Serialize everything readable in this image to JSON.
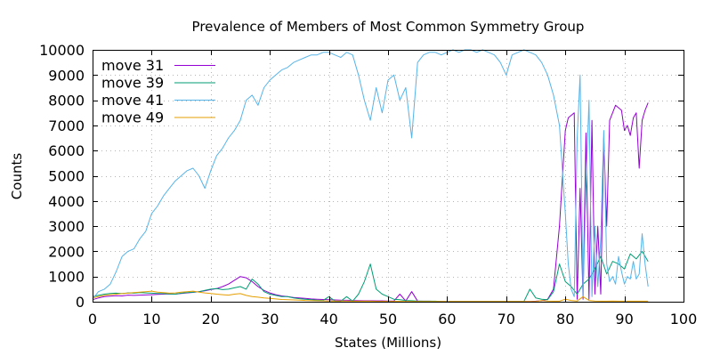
{
  "chart_data": {
    "type": "line",
    "title": "Prevalence of Members of Most Common Symmetry Group",
    "xlabel": "States (Millions)",
    "ylabel": "Counts",
    "xlim": [
      0,
      100
    ],
    "ylim": [
      0,
      10000
    ],
    "xticks": [
      0,
      10,
      20,
      30,
      40,
      50,
      60,
      70,
      80,
      90,
      100
    ],
    "yticks": [
      0,
      1000,
      2000,
      3000,
      4000,
      5000,
      6000,
      7000,
      8000,
      9000,
      10000
    ],
    "grid": true,
    "legend_position": "top-left",
    "series": [
      {
        "name": "move 31",
        "color": "#9400d3",
        "x": [
          0,
          1,
          2,
          3,
          4,
          5,
          6,
          7,
          8,
          9,
          10,
          11,
          12,
          13,
          14,
          15,
          16,
          17,
          18,
          19,
          20,
          21,
          22,
          23,
          24,
          25,
          26,
          27,
          28,
          29,
          30,
          31,
          32,
          33,
          34,
          35,
          36,
          37,
          38,
          39,
          40,
          41,
          42,
          43,
          44,
          45,
          46,
          47,
          48,
          49,
          50,
          51,
          52,
          53,
          54,
          55,
          56,
          57,
          58,
          59,
          60,
          61,
          62,
          63,
          64,
          65,
          66,
          67,
          68,
          69,
          70,
          71,
          72,
          73,
          74,
          75,
          76,
          77,
          78,
          79,
          80,
          80.5,
          81,
          81.5,
          82,
          82.5,
          83,
          83.5,
          84,
          84.5,
          85,
          85.5,
          86,
          86.5,
          87,
          87.5,
          88,
          88.5,
          89,
          89.5,
          90,
          90.5,
          91,
          91.5,
          92,
          92.5,
          93,
          93.5,
          94
        ],
        "y": [
          80,
          150,
          200,
          220,
          240,
          230,
          260,
          250,
          260,
          270,
          280,
          290,
          300,
          310,
          300,
          330,
          350,
          370,
          400,
          430,
          480,
          520,
          600,
          700,
          850,
          1000,
          950,
          800,
          600,
          450,
          350,
          280,
          230,
          200,
          170,
          150,
          130,
          110,
          100,
          90,
          80,
          70,
          60,
          55,
          50,
          45,
          40,
          40,
          35,
          35,
          30,
          30,
          300,
          30,
          400,
          25,
          20,
          20,
          15,
          15,
          10,
          10,
          10,
          10,
          10,
          10,
          10,
          10,
          10,
          10,
          10,
          10,
          10,
          10,
          10,
          20,
          40,
          100,
          500,
          3000,
          6800,
          7300,
          7400,
          7500,
          100,
          4500,
          100,
          6700,
          100,
          7200,
          300,
          3000,
          300,
          6500,
          3000,
          7200,
          7500,
          7800,
          7700,
          7600,
          6800,
          7000,
          6600,
          7300,
          7500,
          5300,
          7200,
          7600,
          7900
        ]
      },
      {
        "name": "move 39",
        "color": "#009e73",
        "x": [
          0,
          1,
          2,
          3,
          4,
          5,
          6,
          7,
          8,
          9,
          10,
          11,
          12,
          13,
          14,
          15,
          16,
          17,
          18,
          19,
          20,
          21,
          22,
          23,
          24,
          25,
          26,
          27,
          28,
          29,
          30,
          31,
          32,
          33,
          34,
          35,
          36,
          37,
          38,
          39,
          40,
          41,
          42,
          43,
          44,
          45,
          46,
          47,
          48,
          49,
          50,
          51,
          52,
          53,
          54,
          55,
          56,
          57,
          58,
          59,
          60,
          61,
          62,
          63,
          64,
          65,
          66,
          67,
          68,
          69,
          70,
          71,
          72,
          73,
          74,
          75,
          76,
          77,
          78,
          79,
          80,
          81,
          82,
          83,
          84,
          85,
          86,
          87,
          88,
          89,
          90,
          91,
          92,
          93,
          94
        ],
        "y": [
          200,
          250,
          300,
          330,
          340,
          320,
          350,
          340,
          360,
          350,
          340,
          330,
          320,
          310,
          300,
          340,
          360,
          380,
          400,
          450,
          500,
          520,
          480,
          500,
          550,
          600,
          500,
          900,
          700,
          400,
          300,
          250,
          200,
          200,
          150,
          120,
          100,
          80,
          60,
          50,
          200,
          30,
          20,
          200,
          20,
          300,
          800,
          1500,
          500,
          300,
          200,
          100,
          80,
          50,
          40,
          30,
          20,
          20,
          20,
          10,
          10,
          10,
          10,
          10,
          10,
          10,
          10,
          10,
          10,
          10,
          10,
          10,
          10,
          10,
          500,
          150,
          100,
          80,
          400,
          1500,
          800,
          600,
          300,
          700,
          900,
          1300,
          1800,
          1100,
          1600,
          1500,
          1300,
          1900,
          1700,
          2000,
          1600
        ]
      },
      {
        "name": "move 41",
        "color": "#56b4e9",
        "x": [
          0,
          1,
          2,
          3,
          4,
          5,
          6,
          7,
          8,
          9,
          10,
          11,
          12,
          13,
          14,
          15,
          16,
          17,
          18,
          19,
          20,
          21,
          22,
          23,
          24,
          25,
          26,
          27,
          28,
          29,
          30,
          31,
          32,
          33,
          34,
          35,
          36,
          37,
          38,
          39,
          40,
          41,
          42,
          43,
          44,
          45,
          46,
          47,
          48,
          49,
          50,
          51,
          52,
          53,
          54,
          55,
          56,
          57,
          58,
          59,
          60,
          61,
          62,
          63,
          64,
          65,
          66,
          67,
          68,
          69,
          70,
          71,
          72,
          73,
          74,
          75,
          76,
          77,
          78,
          79,
          80,
          80.5,
          81,
          81.5,
          82,
          82.5,
          83,
          83.5,
          84,
          84.5,
          85,
          85.5,
          86,
          86.5,
          87,
          87.5,
          88,
          88.5,
          89,
          89.5,
          90,
          90.5,
          91,
          91.5,
          92,
          92.5,
          93,
          93.5,
          94
        ],
        "y": [
          100,
          400,
          500,
          700,
          1200,
          1800,
          2000,
          2100,
          2500,
          2800,
          3500,
          3800,
          4200,
          4500,
          4800,
          5000,
          5200,
          5300,
          5000,
          4500,
          5200,
          5800,
          6100,
          6500,
          6800,
          7200,
          8000,
          8200,
          7800,
          8500,
          8800,
          9000,
          9200,
          9300,
          9500,
          9600,
          9700,
          9800,
          9800,
          9900,
          9900,
          9800,
          9700,
          9900,
          9800,
          9000,
          8000,
          7200,
          8500,
          7500,
          8800,
          9000,
          8000,
          8500,
          6500,
          9500,
          9800,
          9900,
          9900,
          9800,
          9900,
          10000,
          9900,
          10000,
          10000,
          9900,
          10000,
          9900,
          9800,
          9500,
          9000,
          9800,
          9900,
          10000,
          9900,
          9800,
          9500,
          9000,
          8200,
          7000,
          3500,
          1500,
          500,
          200,
          6500,
          9000,
          200,
          4500,
          8000,
          200,
          3000,
          600,
          2500,
          6800,
          1500,
          800,
          1000,
          700,
          1800,
          1200,
          700,
          1000,
          900,
          1600,
          900,
          1100,
          2700,
          1500,
          600
        ]
      },
      {
        "name": "move 49",
        "color": "#e69f00",
        "x": [
          0,
          1,
          2,
          3,
          4,
          5,
          6,
          7,
          8,
          9,
          10,
          11,
          12,
          13,
          14,
          15,
          16,
          17,
          18,
          19,
          20,
          21,
          22,
          23,
          24,
          25,
          26,
          27,
          28,
          29,
          30,
          31,
          32,
          33,
          34,
          35,
          36,
          37,
          38,
          39,
          40,
          41,
          42,
          43,
          44,
          45,
          46,
          47,
          48,
          49,
          50,
          51,
          52,
          53,
          54,
          55,
          56,
          57,
          58,
          59,
          60,
          61,
          62,
          63,
          64,
          65,
          66,
          67,
          68,
          69,
          70,
          71,
          72,
          73,
          74,
          75,
          76,
          77,
          78,
          79,
          80,
          81,
          82,
          83,
          84,
          85,
          86,
          87,
          88,
          89,
          90,
          91,
          92,
          93,
          94
        ],
        "y": [
          150,
          200,
          250,
          280,
          300,
          320,
          340,
          360,
          380,
          400,
          420,
          380,
          360,
          340,
          350,
          380,
          400,
          420,
          380,
          350,
          330,
          300,
          280,
          260,
          300,
          320,
          250,
          200,
          180,
          150,
          130,
          110,
          90,
          80,
          70,
          60,
          50,
          45,
          40,
          35,
          30,
          30,
          25,
          25,
          20,
          20,
          20,
          20,
          15,
          15,
          15,
          15,
          15,
          10,
          10,
          10,
          10,
          10,
          10,
          10,
          10,
          10,
          10,
          10,
          10,
          10,
          10,
          10,
          10,
          10,
          10,
          10,
          10,
          10,
          10,
          10,
          50,
          30,
          20,
          20,
          100,
          50,
          30,
          200,
          50,
          30,
          20,
          20,
          30,
          20,
          20,
          20,
          20,
          20,
          20
        ]
      }
    ]
  }
}
